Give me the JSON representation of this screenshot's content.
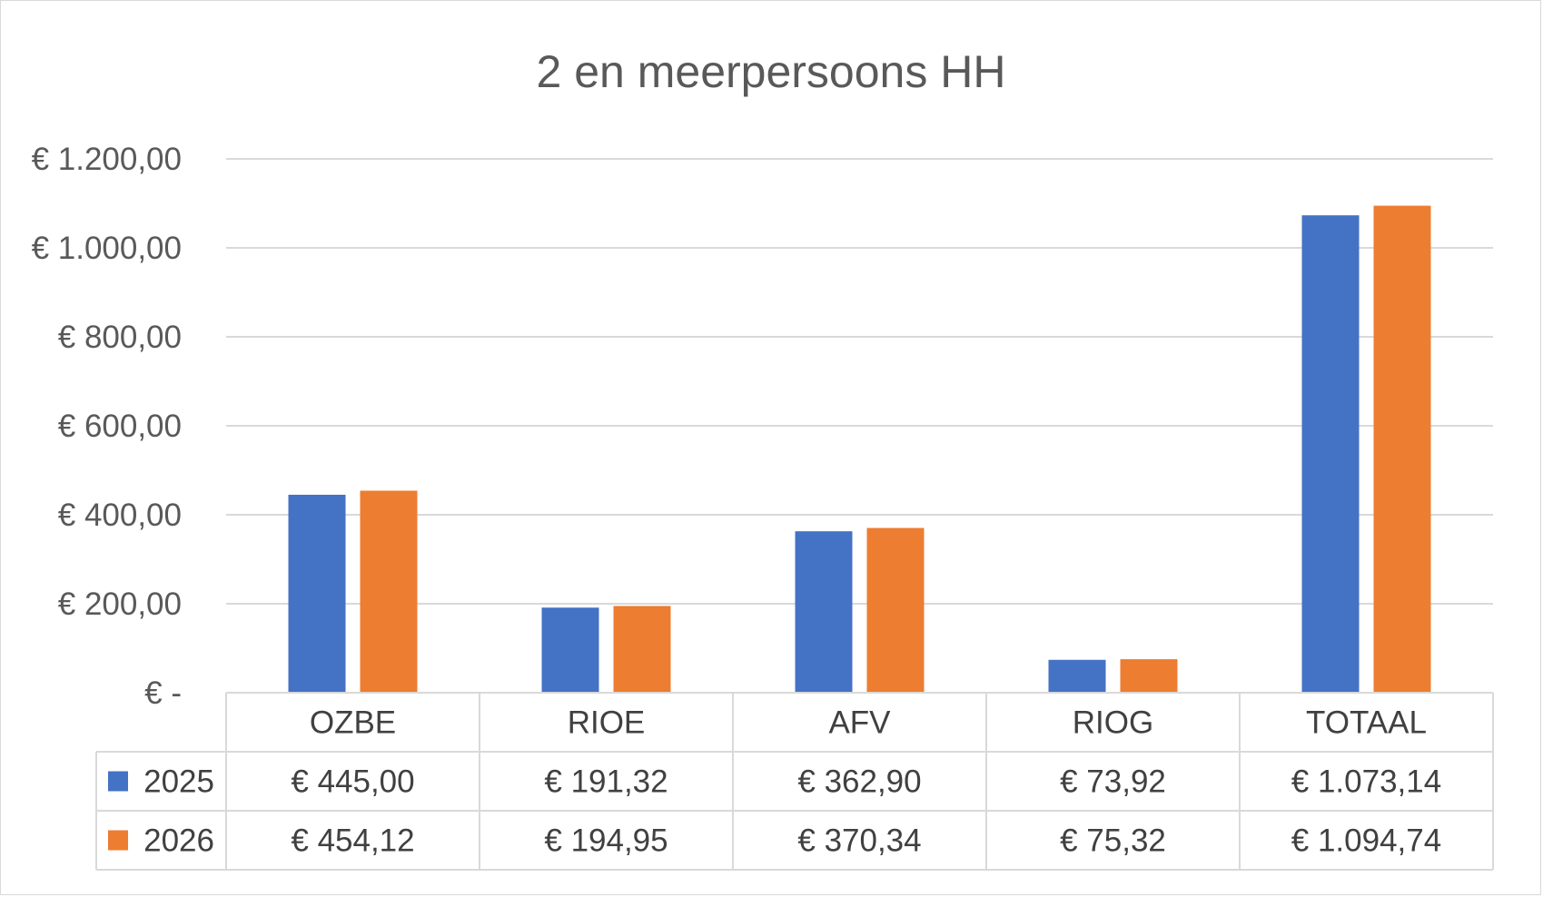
{
  "chart_data": {
    "type": "bar",
    "title": "2 en meerpersoons HH",
    "categories": [
      "OZBE",
      "RIOE",
      "AFV",
      "RIOG",
      "TOTAAL"
    ],
    "series": [
      {
        "name": "2025",
        "color": "#4472c4",
        "values": [
          445.0,
          191.32,
          362.9,
          73.92,
          1073.14
        ],
        "labels": [
          "€ 445,00",
          "€ 191,32",
          "€ 362,90",
          "€ 73,92",
          "€ 1.073,14"
        ]
      },
      {
        "name": "2026",
        "color": "#ed7d31",
        "values": [
          454.12,
          194.95,
          370.34,
          75.32,
          1094.74
        ],
        "labels": [
          "€ 454,12",
          "€ 194,95",
          "€ 370,34",
          "€ 75,32",
          "€ 1.094,74"
        ]
      }
    ],
    "ylim": [
      0,
      1200
    ],
    "yticks": [
      {
        "value": 0,
        "label": "€ -"
      },
      {
        "value": 200,
        "label": "€ 200,00"
      },
      {
        "value": 400,
        "label": "€ 400,00"
      },
      {
        "value": 600,
        "label": "€ 600,00"
      },
      {
        "value": 800,
        "label": "€ 800,00"
      },
      {
        "value": 1000,
        "label": "€ 1.000,00"
      },
      {
        "value": 1200,
        "label": "€ 1.200,00"
      }
    ],
    "grid": true,
    "legend": "data-table"
  }
}
